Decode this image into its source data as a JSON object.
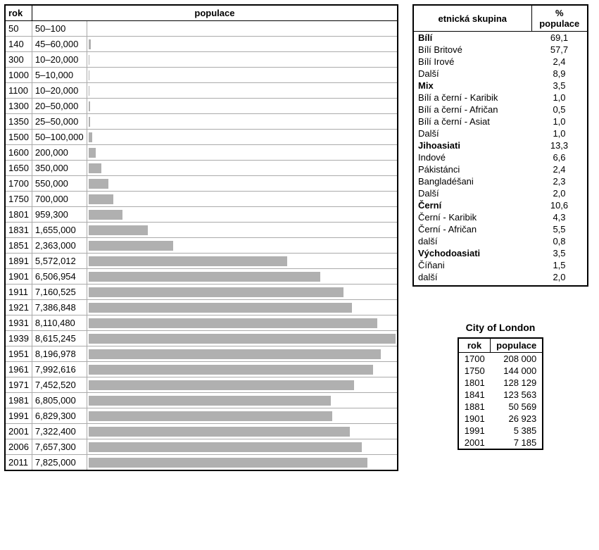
{
  "population_table": {
    "columns": {
      "year": "rok",
      "pop": "populace"
    },
    "max_value": 8615245,
    "bar_color": "#b0b0b0",
    "rows": [
      {
        "year": "50",
        "label": "50–100",
        "value": 100
      },
      {
        "year": "140",
        "label": "45–60,000",
        "value": 60000
      },
      {
        "year": "300",
        "label": "10–20,000",
        "value": 20000
      },
      {
        "year": "1000",
        "label": "5–10,000",
        "value": 10000
      },
      {
        "year": "1100",
        "label": "10–20,000",
        "value": 20000
      },
      {
        "year": "1300",
        "label": "20–50,000",
        "value": 50000
      },
      {
        "year": "1350",
        "label": "25–50,000",
        "value": 50000
      },
      {
        "year": "1500",
        "label": "50–100,000",
        "value": 100000
      },
      {
        "year": "1600",
        "label": "200,000",
        "value": 200000
      },
      {
        "year": "1650",
        "label": "350,000",
        "value": 350000
      },
      {
        "year": "1700",
        "label": "550,000",
        "value": 550000
      },
      {
        "year": "1750",
        "label": "700,000",
        "value": 700000
      },
      {
        "year": "1801",
        "label": "959,300",
        "value": 959300
      },
      {
        "year": "1831",
        "label": "1,655,000",
        "value": 1655000
      },
      {
        "year": "1851",
        "label": "2,363,000",
        "value": 2363000
      },
      {
        "year": "1891",
        "label": "5,572,012",
        "value": 5572012
      },
      {
        "year": "1901",
        "label": "6,506,954",
        "value": 6506954
      },
      {
        "year": "1911",
        "label": "7,160,525",
        "value": 7160525
      },
      {
        "year": "1921",
        "label": "7,386,848",
        "value": 7386848
      },
      {
        "year": "1931",
        "label": "8,110,480",
        "value": 8110480
      },
      {
        "year": "1939",
        "label": "8,615,245",
        "value": 8615245
      },
      {
        "year": "1951",
        "label": "8,196,978",
        "value": 8196978
      },
      {
        "year": "1961",
        "label": "7,992,616",
        "value": 7992616
      },
      {
        "year": "1971",
        "label": "7,452,520",
        "value": 7452520
      },
      {
        "year": "1981",
        "label": "6,805,000",
        "value": 6805000
      },
      {
        "year": "1991",
        "label": "6,829,300",
        "value": 6829300
      },
      {
        "year": "2001",
        "label": "7,322,400",
        "value": 7322400
      },
      {
        "year": "2006",
        "label": "7,657,300",
        "value": 7657300
      },
      {
        "year": "2011",
        "label": "7,825,000",
        "value": 7825000
      }
    ]
  },
  "ethnic_table": {
    "columns": {
      "group": "etnická skupina",
      "pct": "%  populace"
    },
    "rows": [
      {
        "name": "Bílí",
        "pct": "69,1",
        "bold": true
      },
      {
        "name": "Bílí Britové",
        "pct": "57,7"
      },
      {
        "name": "Bílí Irové",
        "pct": "2,4"
      },
      {
        "name": "Další",
        "pct": "8,9"
      },
      {
        "name": "Mix",
        "pct": "3,5",
        "bold": true
      },
      {
        "name": "Bílí a černí - Karibik",
        "pct": "1,0"
      },
      {
        "name": "Bílí a černí - Afričan",
        "pct": "0,5"
      },
      {
        "name": "Bílí a černí - Asiat",
        "pct": "1,0"
      },
      {
        "name": "Další",
        "pct": "1,0"
      },
      {
        "name": "Jihoasiati",
        "pct": "13,3",
        "bold": true
      },
      {
        "name": "Indové",
        "pct": "6,6"
      },
      {
        "name": "Pákistánci",
        "pct": "2,4"
      },
      {
        "name": "Bangladéšani",
        "pct": "2,3"
      },
      {
        "name": "Další",
        "pct": "2,0"
      },
      {
        "name": "Černí",
        "pct": "10,6",
        "bold": true
      },
      {
        "name": "Černí - Karibik",
        "pct": "4,3"
      },
      {
        "name": "Černí - Afričan",
        "pct": "5,5"
      },
      {
        "name": "další",
        "pct": "0,8"
      },
      {
        "name": "Východoasiati",
        "pct": "3,5",
        "bold": true
      },
      {
        "name": "Číňani",
        "pct": "1,5"
      },
      {
        "name": "další",
        "pct": "2,0"
      }
    ]
  },
  "city_table": {
    "title": "City of London",
    "columns": {
      "year": "rok",
      "pop": "populace"
    },
    "rows": [
      {
        "year": "1700",
        "pop": "208 000"
      },
      {
        "year": "1750",
        "pop": "144 000"
      },
      {
        "year": "1801",
        "pop": "128 129"
      },
      {
        "year": "1841",
        "pop": "123 563"
      },
      {
        "year": "1881",
        "pop": "50 569"
      },
      {
        "year": "1901",
        "pop": "26 923"
      },
      {
        "year": "1991",
        "pop": "5 385"
      },
      {
        "year": "2001",
        "pop": "7 185"
      }
    ]
  }
}
